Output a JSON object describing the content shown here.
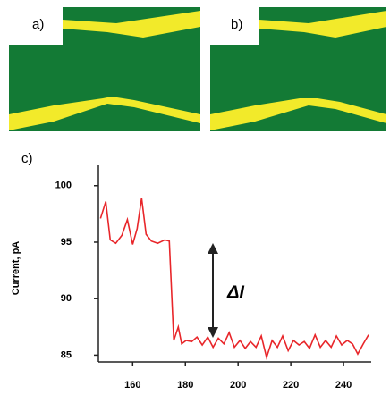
{
  "panels": {
    "a": "a)",
    "b": "b)",
    "c": "c)"
  },
  "chart_data": {
    "type": "line",
    "y_label": "Current, pA",
    "annotation": "ΔI",
    "xlim": [
      147,
      250.5
    ],
    "ylim": [
      84.4,
      101.8
    ],
    "xticks": [
      160,
      180,
      200,
      220,
      240
    ],
    "yticks": [
      85,
      90,
      95,
      100
    ],
    "x": [
      147.8,
      149.8,
      151.5,
      153.6,
      155.9,
      158.0,
      160.0,
      161.7,
      163.4,
      165.1,
      167.1,
      169.5,
      172.2,
      173.9,
      175.6,
      177.3,
      178.6,
      180.3,
      182.4,
      184.4,
      186.4,
      188.5,
      190.5,
      192.5,
      194.6,
      196.6,
      198.6,
      200.7,
      202.7,
      204.7,
      206.8,
      208.8,
      210.8,
      212.9,
      214.9,
      216.9,
      219.0,
      221.0,
      223.1,
      225.1,
      227.1,
      229.2,
      231.2,
      233.2,
      235.3,
      237.3,
      239.3,
      241.4,
      243.4,
      245.4,
      247.5,
      249.5
    ],
    "series": [
      {
        "color": "#e8262a",
        "values": [
          97.1,
          98.6,
          95.2,
          94.9,
          95.6,
          97.0,
          94.8,
          96.2,
          98.9,
          95.7,
          95.1,
          94.9,
          95.2,
          95.1,
          86.3,
          87.5,
          86.0,
          86.3,
          86.2,
          86.6,
          85.9,
          86.6,
          85.7,
          86.5,
          86.0,
          87.0,
          85.7,
          86.3,
          85.6,
          86.2,
          85.7,
          86.7,
          84.8,
          86.3,
          85.7,
          86.7,
          85.4,
          86.3,
          85.9,
          86.2,
          85.6,
          86.8,
          85.7,
          86.3,
          85.7,
          86.7,
          85.9,
          86.3,
          86.0,
          85.1,
          86.0,
          86.8
        ]
      }
    ]
  }
}
